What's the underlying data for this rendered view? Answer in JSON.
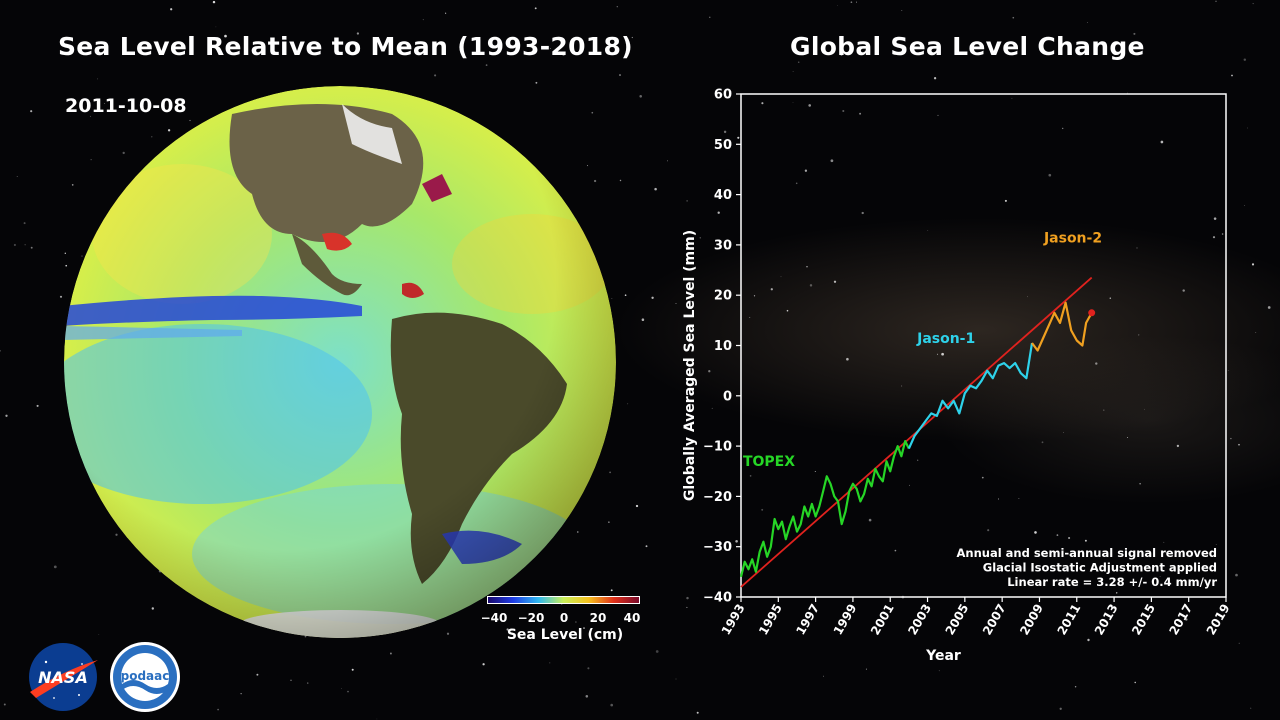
{
  "left_panel": {
    "title": "Sea Level Relative to Mean (1993-2018)",
    "date": "2011-10-08",
    "colorbar": {
      "ticks": [
        "−40",
        "−20",
        "0",
        "20",
        "40"
      ],
      "label": "Sea Level (cm)",
      "colors": [
        "#1b0a6e",
        "#1f3ce6",
        "#2fb8f0",
        "#c8ef5a",
        "#f6c21e",
        "#e0301a",
        "#7a0a2a"
      ]
    }
  },
  "right_panel": {
    "title": "Global Sea Level Change"
  },
  "chart_data": {
    "type": "line",
    "xlabel": "Year",
    "ylabel": "Globally Averaged Sea Level (mm)",
    "xlim": [
      1993,
      2019
    ],
    "ylim": [
      -40,
      60
    ],
    "xticks": [
      1993,
      1995,
      1997,
      1999,
      2001,
      2003,
      2005,
      2007,
      2009,
      2011,
      2013,
      2015,
      2017,
      2019
    ],
    "yticks": [
      -40,
      -30,
      -20,
      -10,
      0,
      10,
      20,
      30,
      40,
      50,
      60
    ],
    "grid": false,
    "annotations": [
      "Annual and semi-annual signal removed",
      "Glacial Isostatic Adjustment applied",
      "Linear rate =  3.28 +/- 0.4 mm/yr"
    ],
    "trend": {
      "color": "#e0221e",
      "x": [
        1993,
        2011.8
      ],
      "y": [
        -38.0,
        23.5
      ]
    },
    "current_point": {
      "x": 2011.8,
      "y": 16.5,
      "color": "#e0221e"
    },
    "series": [
      {
        "name": "TOPEX",
        "color": "#26d626",
        "label_pos": [
          1994.5,
          -14
        ],
        "x": [
          1993.0,
          1993.2,
          1993.4,
          1993.6,
          1993.8,
          1994.0,
          1994.2,
          1994.4,
          1994.6,
          1994.8,
          1995.0,
          1995.2,
          1995.4,
          1995.6,
          1995.8,
          1996.0,
          1996.2,
          1996.4,
          1996.6,
          1996.8,
          1997.0,
          1997.2,
          1997.4,
          1997.6,
          1997.8,
          1998.0,
          1998.2,
          1998.4,
          1998.6,
          1998.8,
          1999.0,
          1999.2,
          1999.4,
          1999.6,
          1999.8,
          2000.0,
          2000.2,
          2000.4,
          2000.6,
          2000.8,
          2001.0,
          2001.2,
          2001.4,
          2001.6,
          2001.8,
          2002.0
        ],
        "y": [
          -36.0,
          -33.0,
          -34.5,
          -32.5,
          -35.0,
          -31.0,
          -29.0,
          -32.0,
          -30.0,
          -24.5,
          -26.5,
          -25.0,
          -28.5,
          -26.0,
          -24.0,
          -27.0,
          -25.5,
          -22.0,
          -24.0,
          -21.5,
          -24.0,
          -22.0,
          -19.0,
          -16.0,
          -17.5,
          -20.0,
          -21.0,
          -25.5,
          -23.0,
          -19.0,
          -17.5,
          -18.5,
          -21.0,
          -19.5,
          -16.5,
          -18.0,
          -14.5,
          -16.0,
          -17.0,
          -13.0,
          -15.0,
          -12.0,
          -10.0,
          -12.0,
          -9.0,
          -10.5
        ]
      },
      {
        "name": "Jason-1",
        "color": "#2ed2ea",
        "label_pos": [
          2004.0,
          10.5
        ],
        "x": [
          2002.0,
          2002.3,
          2002.6,
          2002.9,
          2003.2,
          2003.5,
          2003.8,
          2004.1,
          2004.4,
          2004.7,
          2005.0,
          2005.3,
          2005.6,
          2005.9,
          2006.2,
          2006.5,
          2006.8,
          2007.1,
          2007.4,
          2007.7,
          2008.0,
          2008.3,
          2008.6
        ],
        "y": [
          -10.5,
          -8.0,
          -6.5,
          -5.0,
          -3.5,
          -4.0,
          -1.0,
          -2.5,
          -1.0,
          -3.5,
          0.5,
          2.0,
          1.5,
          3.0,
          5.0,
          3.5,
          6.0,
          6.5,
          5.5,
          6.5,
          4.5,
          3.5,
          10.5
        ]
      },
      {
        "name": "Jason-2",
        "color": "#f0a020",
        "label_pos": [
          2010.8,
          30.5
        ],
        "x": [
          2008.6,
          2008.9,
          2009.2,
          2009.5,
          2009.8,
          2010.1,
          2010.4,
          2010.7,
          2011.0,
          2011.3,
          2011.5,
          2011.8
        ],
        "y": [
          10.5,
          9.0,
          11.5,
          14.0,
          16.5,
          14.5,
          18.5,
          13.0,
          11.0,
          10.0,
          14.5,
          16.5
        ]
      }
    ]
  }
}
